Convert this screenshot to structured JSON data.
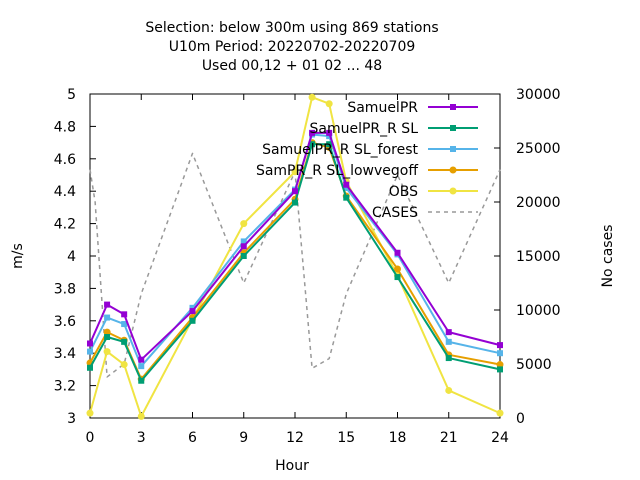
{
  "chart_data": {
    "type": "line",
    "title_lines": [
      "Selection: below 300m using   869 stations",
      "U10m   Period: 20220702-20220709",
      "Used  00,12  + 01 02 ... 48"
    ],
    "xlabel": "Hour",
    "ylabel": "m/s",
    "y2label": "No cases",
    "xlim": [
      0,
      24
    ],
    "ylim": [
      3,
      5
    ],
    "y2lim": [
      0,
      30000
    ],
    "xticks": [
      0,
      3,
      6,
      9,
      12,
      15,
      18,
      21,
      24
    ],
    "yticks": [
      3,
      3.2,
      3.4,
      3.6,
      3.8,
      4,
      4.2,
      4.4,
      4.6,
      4.8,
      5
    ],
    "yticklabels": [
      "3",
      "3.2",
      "3.4",
      "3.6",
      "3.8",
      "4",
      "4.2",
      "4.4",
      "4.6",
      "4.8",
      "5"
    ],
    "y2ticks": [
      0,
      5000,
      10000,
      15000,
      20000,
      25000,
      30000
    ],
    "grid": false,
    "legend_position": "top-right",
    "series": [
      {
        "name": "SamuelPR",
        "color": "#9400d3",
        "axis": "y",
        "marker": "square",
        "x": [
          0,
          1,
          2,
          3,
          6,
          9,
          12,
          13,
          14,
          15,
          18,
          21,
          24
        ],
        "y": [
          3.46,
          3.7,
          3.64,
          3.36,
          3.66,
          4.06,
          4.4,
          4.76,
          4.76,
          4.44,
          4.02,
          3.53,
          3.45
        ]
      },
      {
        "name": "SamuelPR_R SL",
        "color": "#009e73",
        "axis": "y",
        "marker": "square",
        "x": [
          0,
          1,
          2,
          3,
          6,
          9,
          12,
          13,
          14,
          15,
          18,
          21,
          24
        ],
        "y": [
          3.31,
          3.5,
          3.47,
          3.23,
          3.6,
          4.0,
          4.33,
          4.69,
          4.69,
          4.36,
          3.87,
          3.37,
          3.3
        ]
      },
      {
        "name": "SamuelPR_R SL_forest",
        "color": "#56b4e9",
        "axis": "y",
        "marker": "square",
        "x": [
          0,
          1,
          2,
          3,
          6,
          9,
          12,
          13,
          14,
          15,
          18,
          21,
          24
        ],
        "y": [
          3.41,
          3.62,
          3.58,
          3.32,
          3.68,
          4.09,
          4.41,
          4.75,
          4.74,
          4.42,
          4.01,
          3.47,
          3.4
        ]
      },
      {
        "name": "SamPR_R SL_lowvegoff",
        "color": "#e69f00",
        "axis": "y",
        "marker": "circle",
        "x": [
          0,
          1,
          2,
          3,
          6,
          9,
          12,
          13,
          14,
          15,
          18,
          21,
          24
        ],
        "y": [
          3.34,
          3.53,
          3.48,
          3.24,
          3.62,
          4.02,
          4.35,
          4.7,
          4.67,
          4.37,
          3.92,
          3.39,
          3.33
        ]
      },
      {
        "name": "OBS",
        "color": "#f0e442",
        "axis": "y",
        "marker": "circle",
        "x": [
          0,
          1,
          2,
          3,
          6,
          9,
          12,
          13,
          14,
          15,
          18,
          21,
          24
        ],
        "y": [
          3.03,
          3.41,
          3.33,
          3.01,
          3.61,
          4.2,
          4.52,
          4.98,
          4.94,
          4.46,
          3.88,
          3.17,
          3.03
        ]
      },
      {
        "name": "CASES",
        "color": "#999999",
        "axis": "y2",
        "marker": "none",
        "dashed": true,
        "x": [
          0,
          0.3,
          1,
          2,
          3,
          6,
          9,
          12,
          13,
          14,
          15,
          18,
          21,
          24
        ],
        "y": [
          23000,
          20000,
          3800,
          5000,
          11500,
          24500,
          12500,
          22800,
          4600,
          5500,
          11500,
          22500,
          12500,
          23000
        ]
      }
    ]
  }
}
